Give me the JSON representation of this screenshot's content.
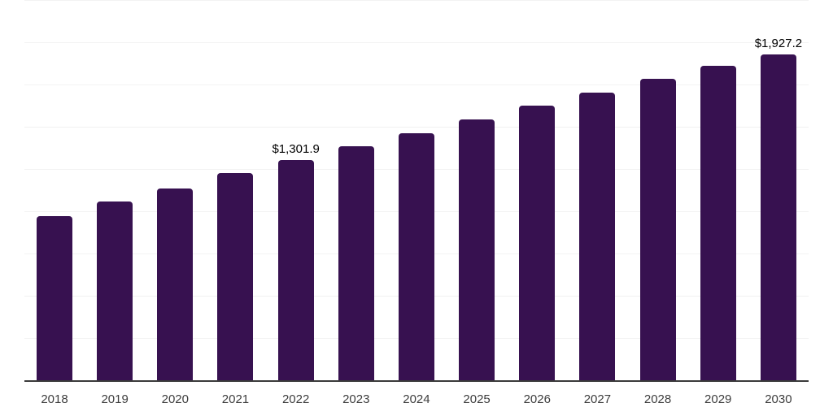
{
  "chart_data": {
    "type": "bar",
    "title": "",
    "xlabel": "",
    "ylabel": "",
    "categories": [
      "2018",
      "2019",
      "2020",
      "2021",
      "2022",
      "2023",
      "2024",
      "2025",
      "2026",
      "2027",
      "2028",
      "2029",
      "2030"
    ],
    "values": [
      970,
      1057,
      1136,
      1225,
      1301.9,
      1384,
      1461,
      1542,
      1624,
      1701,
      1783,
      1860,
      1927.2
    ],
    "data_labels": {
      "2022": "$1,301.9",
      "2030": "$1,927.2"
    },
    "ylim": [
      0,
      2250
    ],
    "gridline_step": 250,
    "grid": "horizontal",
    "legend_position": "none",
    "colors": {
      "bar": "#371150",
      "gridline": "#f2f2f2",
      "axis_line": "#3a3a3a",
      "tick_label": "#3d3d3d",
      "data_label": "#000000",
      "background": "#ffffff"
    }
  }
}
